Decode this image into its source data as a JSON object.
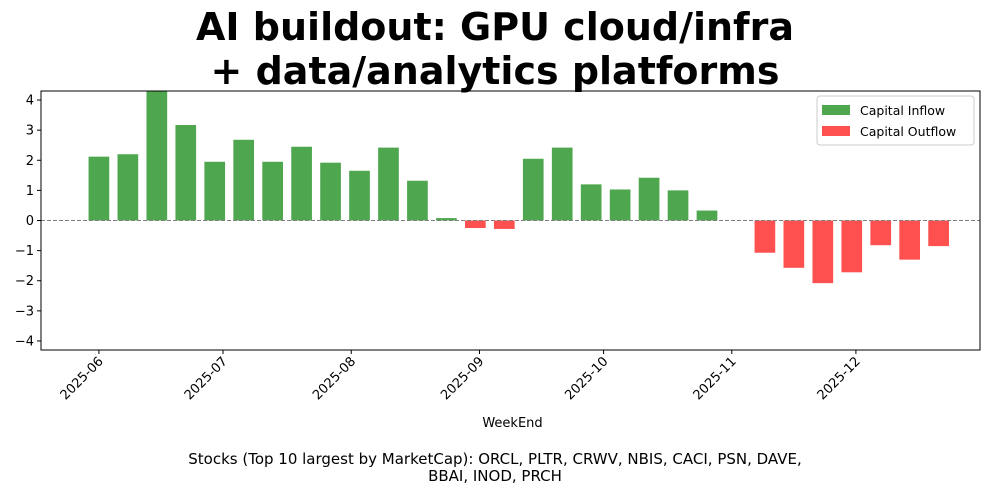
{
  "title_line1": "AI buildout: GPU cloud/infra",
  "title_line2": "+ data/analytics platforms",
  "footnote_line1": "Stocks (Top 10 largest by MarketCap): ORCL, PLTR, CRWV, NBIS, CACI, PSN, DAVE,",
  "footnote_line2": "BBAI, INOD, PRCH",
  "colors": {
    "inflow": "#4ea64e",
    "outflow": "#ff5050",
    "zero_line": "#808080"
  },
  "chart_data": {
    "type": "bar",
    "title": "AI buildout: GPU cloud/infra + data/analytics platforms",
    "xlabel": "WeekEnd",
    "ylabel": "",
    "ylim": [
      -4.3,
      4.3
    ],
    "yticks": [
      -4,
      -3,
      -2,
      -1,
      0,
      1,
      2,
      3,
      4
    ],
    "ytick_labels": [
      "−4",
      "−3",
      "−2",
      "−1",
      "0",
      "1",
      "2",
      "3",
      "4"
    ],
    "xtick_labels": [
      "2025-06",
      "2025-07",
      "2025-08",
      "2025-09",
      "2025-10",
      "2025-11",
      "2025-12"
    ],
    "xtick_days": [
      0,
      30,
      61,
      92,
      122,
      153,
      183
    ],
    "xlim_days": [
      -14,
      213
    ],
    "bar_width_days": 5,
    "legend": {
      "position": "top-right",
      "entries": [
        "Capital Inflow",
        "Capital Outflow"
      ]
    },
    "series": [
      {
        "week": 0,
        "day": 0,
        "value": 2.12
      },
      {
        "week": 1,
        "day": 7,
        "value": 2.2
      },
      {
        "week": 2,
        "day": 14,
        "value": 4.3
      },
      {
        "week": 3,
        "day": 21,
        "value": 3.17
      },
      {
        "week": 4,
        "day": 28,
        "value": 1.95
      },
      {
        "week": 5,
        "day": 35,
        "value": 2.68
      },
      {
        "week": 6,
        "day": 42,
        "value": 1.95
      },
      {
        "week": 7,
        "day": 49,
        "value": 2.45
      },
      {
        "week": 8,
        "day": 56,
        "value": 1.92
      },
      {
        "week": 9,
        "day": 63,
        "value": 1.65
      },
      {
        "week": 10,
        "day": 70,
        "value": 2.42
      },
      {
        "week": 11,
        "day": 77,
        "value": 1.32
      },
      {
        "week": 12,
        "day": 84,
        "value": 0.08
      },
      {
        "week": 13,
        "day": 91,
        "value": -0.25
      },
      {
        "week": 14,
        "day": 98,
        "value": -0.28
      },
      {
        "week": 15,
        "day": 105,
        "value": 2.05
      },
      {
        "week": 16,
        "day": 112,
        "value": 2.42
      },
      {
        "week": 17,
        "day": 119,
        "value": 1.2
      },
      {
        "week": 18,
        "day": 126,
        "value": 1.03
      },
      {
        "week": 19,
        "day": 133,
        "value": 1.42
      },
      {
        "week": 20,
        "day": 140,
        "value": 1.0
      },
      {
        "week": 21,
        "day": 147,
        "value": 0.33
      },
      {
        "week": 22,
        "day": 154,
        "value": 0.0
      },
      {
        "week": 23,
        "day": 161,
        "value": -1.07
      },
      {
        "week": 24,
        "day": 168,
        "value": -1.57
      },
      {
        "week": 25,
        "day": 175,
        "value": -2.08
      },
      {
        "week": 26,
        "day": 182,
        "value": -1.72
      },
      {
        "week": 27,
        "day": 189,
        "value": -0.82
      },
      {
        "week": 28,
        "day": 196,
        "value": -1.3
      },
      {
        "week": 29,
        "day": 203,
        "value": -0.85
      }
    ]
  }
}
